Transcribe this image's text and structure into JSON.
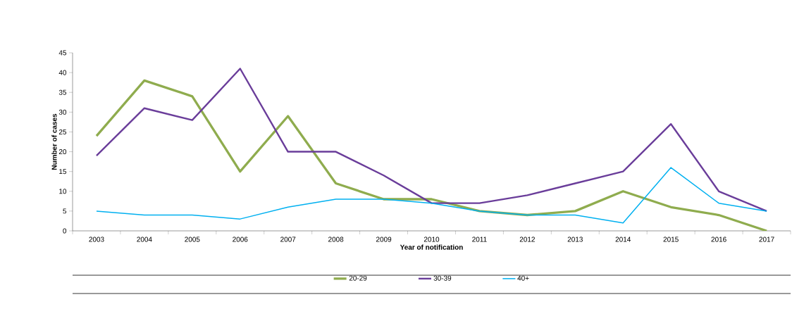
{
  "chart_data": {
    "type": "line",
    "xlabel": "Year of notification",
    "ylabel": "Number of cases",
    "categories": [
      "2003",
      "2004",
      "2005",
      "2006",
      "2007",
      "2008",
      "2009",
      "2010",
      "2011",
      "2012",
      "2013",
      "2014",
      "2015",
      "2016",
      "2017"
    ],
    "series": [
      {
        "name": "20-29",
        "color": "#8fac4e",
        "values": [
          24,
          38,
          34,
          15,
          29,
          12,
          8,
          8,
          5,
          4,
          5,
          10,
          6,
          4,
          0
        ]
      },
      {
        "name": "30-39",
        "color": "#6a3d9a",
        "values": [
          19,
          31,
          28,
          41,
          20,
          20,
          14,
          7,
          7,
          9,
          12,
          15,
          27,
          10,
          5
        ]
      },
      {
        "name": "40+",
        "color": "#00b0f0",
        "values": [
          5,
          4,
          4,
          3,
          6,
          8,
          8,
          7,
          5,
          4,
          4,
          2,
          16,
          7,
          5
        ]
      }
    ],
    "ylim": [
      0,
      45
    ],
    "yticks": [
      0,
      5,
      10,
      15,
      20,
      25,
      30,
      35,
      40,
      45
    ],
    "grid": false,
    "legend": "bottom",
    "marker": "none",
    "line_style": "solid"
  }
}
